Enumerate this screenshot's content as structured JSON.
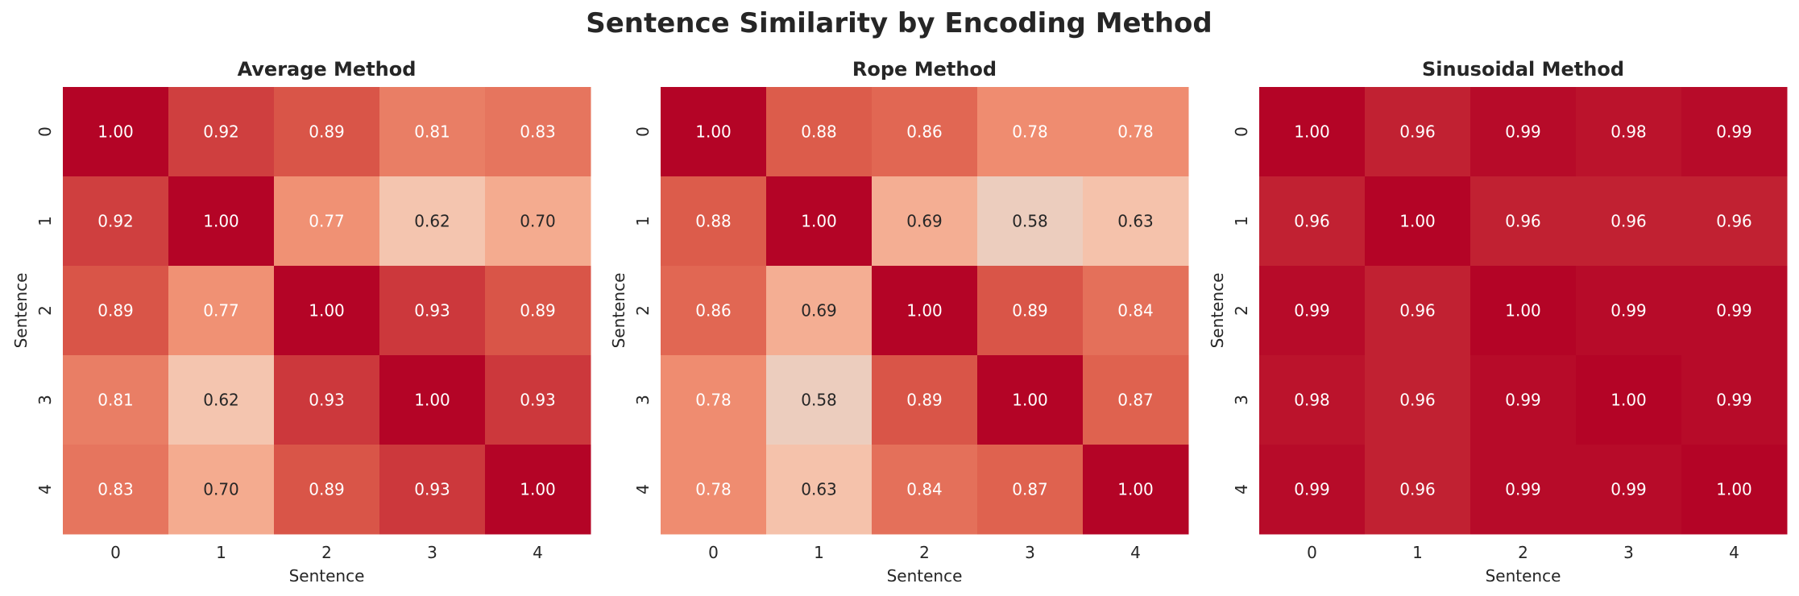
{
  "figure": {
    "title": "Sentence Similarity by Encoding Method"
  },
  "chart_data": [
    {
      "type": "heatmap",
      "title": "Average Method",
      "xlabel": "Sentence",
      "ylabel": "Sentence",
      "x_categories": [
        "0",
        "1",
        "2",
        "3",
        "4"
      ],
      "y_categories": [
        "0",
        "1",
        "2",
        "3",
        "4"
      ],
      "values": [
        [
          1.0,
          0.92,
          0.89,
          0.81,
          0.83
        ],
        [
          0.92,
          1.0,
          0.77,
          0.62,
          0.7
        ],
        [
          0.89,
          0.77,
          1.0,
          0.93,
          0.89
        ],
        [
          0.81,
          0.62,
          0.93,
          1.0,
          0.93
        ],
        [
          0.83,
          0.7,
          0.89,
          0.93,
          1.0
        ]
      ],
      "value_format": "0.00",
      "colormap": "coolwarm",
      "color_range": [
        0,
        1
      ],
      "colorbar": false,
      "grid": false
    },
    {
      "type": "heatmap",
      "title": "Rope Method",
      "xlabel": "Sentence",
      "ylabel": "Sentence",
      "x_categories": [
        "0",
        "1",
        "2",
        "3",
        "4"
      ],
      "y_categories": [
        "0",
        "1",
        "2",
        "3",
        "4"
      ],
      "values": [
        [
          1.0,
          0.88,
          0.86,
          0.78,
          0.78
        ],
        [
          0.88,
          1.0,
          0.69,
          0.58,
          0.63
        ],
        [
          0.86,
          0.69,
          1.0,
          0.89,
          0.84
        ],
        [
          0.78,
          0.58,
          0.89,
          1.0,
          0.87
        ],
        [
          0.78,
          0.63,
          0.84,
          0.87,
          1.0
        ]
      ],
      "value_format": "0.00",
      "colormap": "coolwarm",
      "color_range": [
        0,
        1
      ],
      "colorbar": false,
      "grid": false
    },
    {
      "type": "heatmap",
      "title": "Sinusoidal Method",
      "xlabel": "Sentence",
      "ylabel": "Sentence",
      "x_categories": [
        "0",
        "1",
        "2",
        "3",
        "4"
      ],
      "y_categories": [
        "0",
        "1",
        "2",
        "3",
        "4"
      ],
      "values": [
        [
          1.0,
          0.96,
          0.99,
          0.98,
          0.99
        ],
        [
          0.96,
          1.0,
          0.96,
          0.96,
          0.96
        ],
        [
          0.99,
          0.96,
          1.0,
          0.99,
          0.99
        ],
        [
          0.98,
          0.96,
          0.99,
          1.0,
          0.99
        ],
        [
          0.99,
          0.96,
          0.99,
          0.99,
          1.0
        ]
      ],
      "value_format": "0.00",
      "colormap": "coolwarm",
      "color_range": [
        0,
        1
      ],
      "colorbar": false,
      "grid": false
    }
  ]
}
